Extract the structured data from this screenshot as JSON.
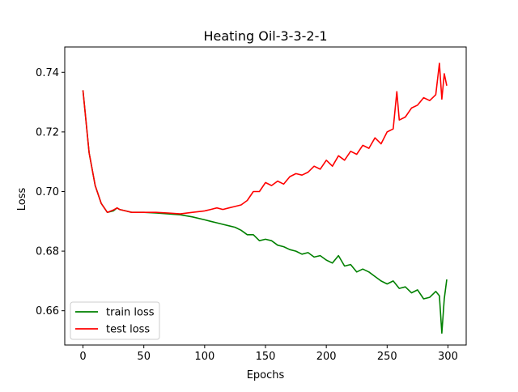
{
  "chart_data": {
    "type": "line",
    "title": "Heating Oil-3-3-2-1",
    "xlabel": "Epochs",
    "ylabel": "Loss",
    "xlim": [
      -15,
      315
    ],
    "ylim": [
      0.6485,
      0.7485
    ],
    "xticks": [
      0,
      50,
      100,
      150,
      200,
      250,
      300
    ],
    "yticks": [
      0.66,
      0.68,
      0.7,
      0.72,
      0.74
    ],
    "ytick_labels": [
      "0.66",
      "0.68",
      "0.70",
      "0.72",
      "0.74"
    ],
    "xtick_labels": [
      "0",
      "50",
      "100",
      "150",
      "200",
      "250",
      "300"
    ],
    "grid": false,
    "legend_position": "lower-left",
    "series": [
      {
        "name": "train loss",
        "color": "#008000",
        "x": [
          0,
          5,
          10,
          15,
          20,
          25,
          28,
          30,
          35,
          40,
          50,
          60,
          70,
          80,
          90,
          100,
          105,
          110,
          115,
          120,
          125,
          130,
          135,
          140,
          145,
          150,
          155,
          160,
          165,
          170,
          175,
          180,
          185,
          190,
          195,
          200,
          205,
          210,
          215,
          220,
          225,
          230,
          235,
          240,
          245,
          250,
          255,
          260,
          265,
          270,
          275,
          280,
          285,
          290,
          293,
          295,
          297,
          299
        ],
        "y": [
          0.734,
          0.713,
          0.702,
          0.696,
          0.693,
          0.6935,
          0.6945,
          0.694,
          0.6935,
          0.693,
          0.693,
          0.6928,
          0.6925,
          0.6922,
          0.6915,
          0.6905,
          0.69,
          0.6895,
          0.689,
          0.6885,
          0.688,
          0.687,
          0.6855,
          0.6855,
          0.6835,
          0.684,
          0.6835,
          0.682,
          0.6815,
          0.6805,
          0.68,
          0.679,
          0.6795,
          0.678,
          0.6785,
          0.677,
          0.676,
          0.6785,
          0.675,
          0.6755,
          0.673,
          0.674,
          0.673,
          0.6715,
          0.67,
          0.669,
          0.67,
          0.6675,
          0.668,
          0.666,
          0.667,
          0.664,
          0.6645,
          0.6665,
          0.665,
          0.6525,
          0.664,
          0.6705
        ]
      },
      {
        "name": "test loss",
        "color": "#ff0000",
        "x": [
          0,
          5,
          10,
          15,
          20,
          25,
          28,
          30,
          35,
          40,
          50,
          60,
          70,
          80,
          90,
          100,
          105,
          110,
          115,
          120,
          125,
          130,
          135,
          140,
          145,
          150,
          155,
          160,
          165,
          170,
          175,
          180,
          185,
          190,
          195,
          200,
          205,
          210,
          215,
          220,
          225,
          230,
          235,
          240,
          245,
          250,
          255,
          258,
          260,
          265,
          270,
          275,
          280,
          285,
          290,
          293,
          295,
          297,
          299
        ],
        "y": [
          0.734,
          0.713,
          0.702,
          0.696,
          0.693,
          0.6938,
          0.6945,
          0.694,
          0.6935,
          0.693,
          0.693,
          0.693,
          0.6928,
          0.6925,
          0.693,
          0.6935,
          0.694,
          0.6945,
          0.694,
          0.6945,
          0.695,
          0.6955,
          0.697,
          0.7,
          0.7,
          0.703,
          0.702,
          0.7035,
          0.7025,
          0.705,
          0.706,
          0.7055,
          0.7065,
          0.7085,
          0.7075,
          0.7105,
          0.7085,
          0.712,
          0.7105,
          0.7135,
          0.7125,
          0.7155,
          0.7145,
          0.718,
          0.716,
          0.72,
          0.721,
          0.7335,
          0.724,
          0.725,
          0.728,
          0.729,
          0.7315,
          0.7305,
          0.7325,
          0.743,
          0.731,
          0.7395,
          0.7355
        ]
      }
    ]
  }
}
